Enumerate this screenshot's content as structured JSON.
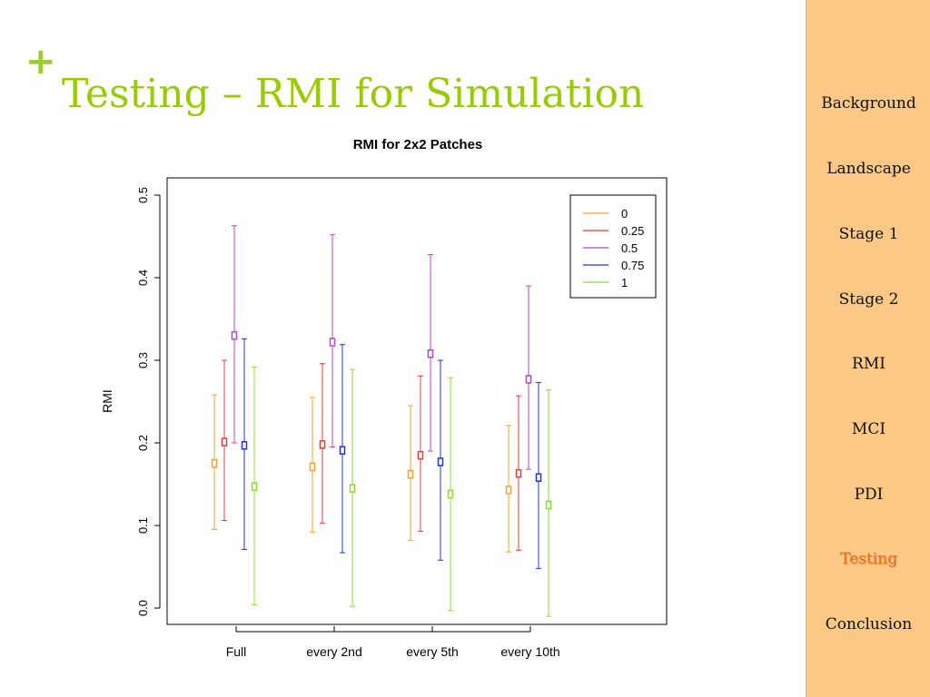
{
  "slide": {
    "marker": "+",
    "title": "Testing – RMI for Simulation"
  },
  "nav": {
    "items": [
      {
        "label": "Background",
        "active": false
      },
      {
        "label": "Landscape",
        "active": false
      },
      {
        "label": "Stage 1",
        "active": false
      },
      {
        "label": "Stage 2",
        "active": false
      },
      {
        "label": "RMI",
        "active": false
      },
      {
        "label": "MCI",
        "active": false
      },
      {
        "label": "PDI",
        "active": false
      },
      {
        "label": "Testing",
        "active": true
      },
      {
        "label": "Conclusion",
        "active": false
      }
    ]
  },
  "colors": {
    "accent": "#99cc00",
    "sidebar_bg": "#fcc886",
    "active_nav": "#e8701e"
  },
  "chart_data": {
    "type": "errorbar",
    "title": "RMI for 2x2 Patches",
    "xlabel": "",
    "ylabel": "RMI",
    "ylim": [
      0.0,
      0.5
    ],
    "yticks": [
      "0.0",
      "0.1",
      "0.2",
      "0.3",
      "0.4",
      "0.5"
    ],
    "categories": [
      "Full",
      "every 2nd",
      "every 5th",
      "every 10th"
    ],
    "legend_position": "top-right",
    "series": [
      {
        "name": "0",
        "color": "#f5a030",
        "values": [
          0.175,
          0.171,
          0.162,
          0.143
        ],
        "low": [
          0.095,
          0.092,
          0.082,
          0.068
        ],
        "high": [
          0.258,
          0.255,
          0.245,
          0.221
        ]
      },
      {
        "name": "0.25",
        "color": "#e8383c",
        "values": [
          0.201,
          0.198,
          0.185,
          0.163
        ],
        "low": [
          0.106,
          0.103,
          0.093,
          0.07
        ],
        "high": [
          0.3,
          0.296,
          0.281,
          0.257
        ]
      },
      {
        "name": "0.5",
        "color": "#b048c8",
        "values": [
          0.33,
          0.322,
          0.308,
          0.277
        ],
        "low": [
          0.2,
          0.195,
          0.19,
          0.168
        ],
        "high": [
          0.463,
          0.452,
          0.428,
          0.39
        ]
      },
      {
        "name": "0.75",
        "color": "#2233cc",
        "values": [
          0.197,
          0.191,
          0.177,
          0.158
        ],
        "low": [
          0.071,
          0.067,
          0.058,
          0.048
        ],
        "high": [
          0.326,
          0.319,
          0.3,
          0.273
        ]
      },
      {
        "name": "1",
        "color": "#88dd33",
        "values": [
          0.147,
          0.145,
          0.138,
          0.125
        ],
        "low": [
          0.004,
          0.002,
          -0.003,
          -0.01
        ],
        "high": [
          0.292,
          0.289,
          0.279,
          0.264
        ]
      }
    ]
  }
}
